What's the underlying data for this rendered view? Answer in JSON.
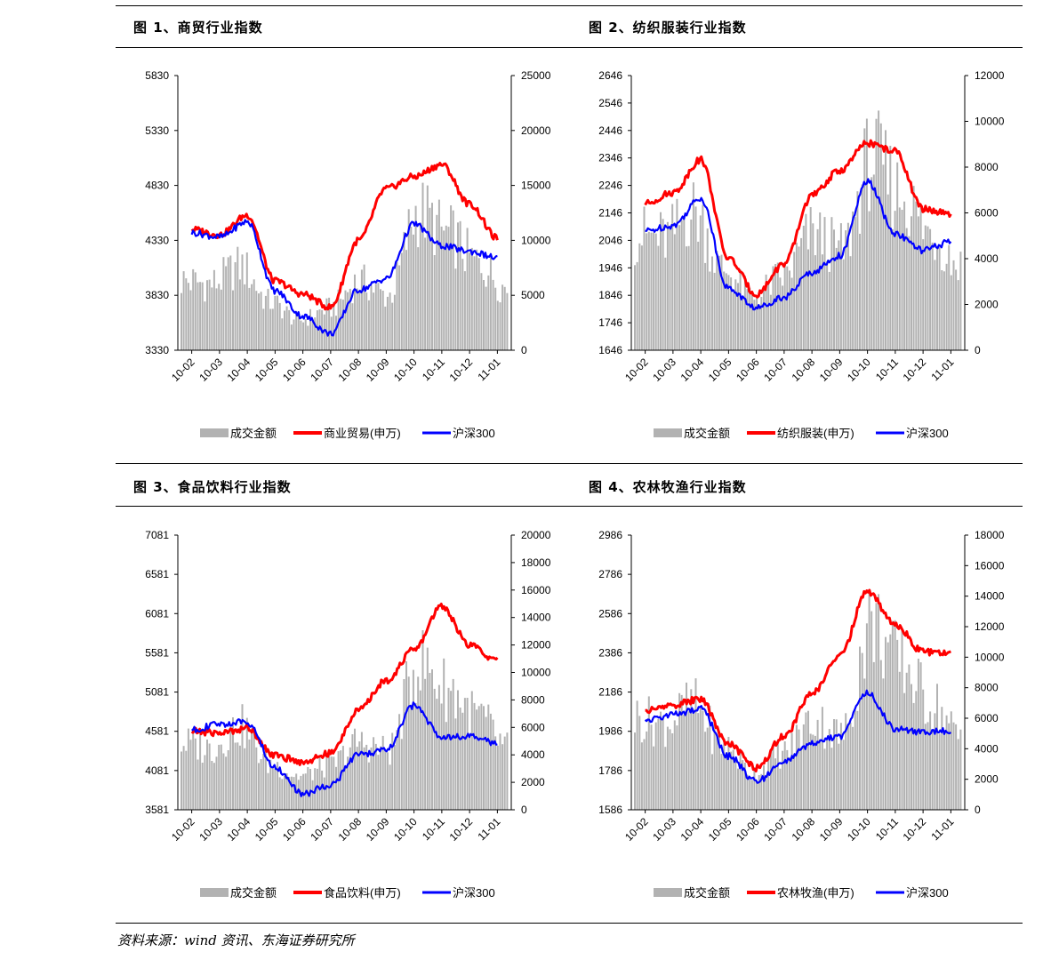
{
  "panels": [
    {
      "title": "图 1、商贸行业指数"
    },
    {
      "title": "图 2、纺织服装行业指数"
    },
    {
      "title": "图 3、食品饮料行业指数"
    },
    {
      "title": "图 4、农林牧渔行业指数"
    }
  ],
  "source": "资料来源：wind 资讯、东海证券研究所",
  "colors": {
    "volume": "#b2b2b2",
    "sector": "#ff0000",
    "hs300": "#0000ff"
  },
  "chart_data": [
    {
      "type": "bar-line",
      "title": "图 1、商贸行业指数",
      "categories": [
        "10-02",
        "10-03",
        "10-04",
        "10-05",
        "10-06",
        "10-07",
        "10-08",
        "10-09",
        "10-10",
        "10-11",
        "10-12",
        "11-01"
      ],
      "left_axis": {
        "ticks": [
          3330,
          3830,
          4330,
          4830,
          5330,
          5830
        ],
        "ylim": [
          3330,
          5830
        ]
      },
      "right_axis": {
        "ticks": [
          0,
          5000,
          10000,
          15000,
          20000,
          25000
        ],
        "ylim": [
          0,
          25000
        ]
      },
      "series": [
        {
          "name": "成交金额",
          "kind": "bar",
          "axis": "right",
          "values": [
            6500,
            6200,
            7800,
            4500,
            2800,
            3900,
            6400,
            5100,
            13000,
            10800,
            8200,
            5800
          ]
        },
        {
          "name": "商业贸易(申万)",
          "kind": "line",
          "axis": "left",
          "values": [
            4430,
            4380,
            4560,
            3960,
            3840,
            3720,
            4330,
            4800,
            4910,
            5020,
            4660,
            4350
          ]
        },
        {
          "name": "沪深300",
          "kind": "line",
          "axis": "left",
          "values": [
            4400,
            4360,
            4500,
            3870,
            3640,
            3480,
            3880,
            3980,
            4480,
            4280,
            4230,
            4170
          ]
        }
      ],
      "legend_position": "bottom"
    },
    {
      "type": "bar-line",
      "title": "图 2、纺织服装行业指数",
      "categories": [
        "10-02",
        "10-03",
        "10-04",
        "10-05",
        "10-06",
        "10-07",
        "10-08",
        "10-09",
        "10-10",
        "10-11",
        "10-12",
        "11-01"
      ],
      "left_axis": {
        "ticks": [
          1646,
          1746,
          1846,
          1946,
          2046,
          2146,
          2246,
          2346,
          2446,
          2546,
          2646
        ],
        "ylim": [
          1646,
          2646
        ]
      },
      "right_axis": {
        "ticks": [
          0,
          2000,
          4000,
          6000,
          8000,
          10000,
          12000
        ],
        "ylim": [
          0,
          12000
        ]
      },
      "series": [
        {
          "name": "成交金额",
          "kind": "bar",
          "axis": "right",
          "values": [
            5200,
            5000,
            6200,
            3600,
            2400,
            3300,
            5200,
            4500,
            8600,
            7000,
            5200,
            3800
          ]
        },
        {
          "name": "纺织服装(申万)",
          "kind": "line",
          "axis": "left",
          "values": [
            2180,
            2220,
            2340,
            1980,
            1850,
            1960,
            2210,
            2300,
            2400,
            2370,
            2160,
            2140
          ]
        },
        {
          "name": "沪深300",
          "kind": "line",
          "axis": "left",
          "values": [
            2080,
            2100,
            2200,
            1870,
            1800,
            1840,
            1930,
            1990,
            2260,
            2070,
            2010,
            2040
          ]
        }
      ],
      "legend_position": "bottom"
    },
    {
      "type": "bar-line",
      "title": "图 3、食品饮料行业指数",
      "categories": [
        "10-02",
        "10-03",
        "10-04",
        "10-05",
        "10-06",
        "10-07",
        "10-08",
        "10-09",
        "10-10",
        "10-11",
        "10-12",
        "11-01"
      ],
      "left_axis": {
        "ticks": [
          3581,
          4081,
          4581,
          5081,
          5581,
          6081,
          6581,
          7081
        ],
        "ylim": [
          3581,
          7081
        ]
      },
      "right_axis": {
        "ticks": [
          0,
          2000,
          4000,
          6000,
          8000,
          10000,
          12000,
          14000,
          16000,
          18000,
          20000
        ],
        "ylim": [
          0,
          20000
        ]
      },
      "series": [
        {
          "name": "成交金额",
          "kind": "bar",
          "axis": "right",
          "values": [
            5000,
            4600,
            6200,
            3400,
            2500,
            3300,
            5000,
            4400,
            11000,
            9000,
            7000,
            4600
          ]
        },
        {
          "name": "食品饮料(申万)",
          "kind": "line",
          "axis": "left",
          "values": [
            4580,
            4560,
            4620,
            4270,
            4190,
            4300,
            4850,
            5230,
            5620,
            6180,
            5680,
            5480
          ]
        },
        {
          "name": "沪深300",
          "kind": "line",
          "axis": "left",
          "values": [
            4600,
            4670,
            4700,
            4120,
            3780,
            3900,
            4280,
            4340,
            4910,
            4520,
            4510,
            4430
          ]
        }
      ],
      "legend_position": "bottom"
    },
    {
      "type": "bar-line",
      "title": "图 4、农林牧渔行业指数",
      "categories": [
        "10-02",
        "10-03",
        "10-04",
        "10-05",
        "10-06",
        "10-07",
        "10-08",
        "10-09",
        "10-10",
        "10-11",
        "10-12",
        "11-01"
      ],
      "left_axis": {
        "ticks": [
          1586,
          1786,
          1986,
          2186,
          2386,
          2586,
          2786,
          2986
        ],
        "ylim": [
          1586,
          2986
        ]
      },
      "right_axis": {
        "ticks": [
          0,
          2000,
          4000,
          6000,
          8000,
          10000,
          12000,
          14000,
          16000,
          18000
        ],
        "ylim": [
          0,
          18000
        ]
      },
      "series": [
        {
          "name": "成交金额",
          "kind": "bar",
          "axis": "right",
          "values": [
            6200,
            5800,
            7000,
            4300,
            2500,
            3800,
            6000,
            5000,
            12500,
            9800,
            7200,
            4900
          ]
        },
        {
          "name": "农林牧渔(申万)",
          "kind": "line",
          "axis": "left",
          "values": [
            2090,
            2120,
            2150,
            1920,
            1800,
            1960,
            2180,
            2370,
            2700,
            2530,
            2390,
            2380
          ]
        },
        {
          "name": "沪深300",
          "kind": "line",
          "axis": "left",
          "values": [
            2040,
            2070,
            2100,
            1860,
            1730,
            1830,
            1920,
            1960,
            2180,
            2000,
            1980,
            1990
          ]
        }
      ],
      "legend_position": "bottom"
    }
  ]
}
